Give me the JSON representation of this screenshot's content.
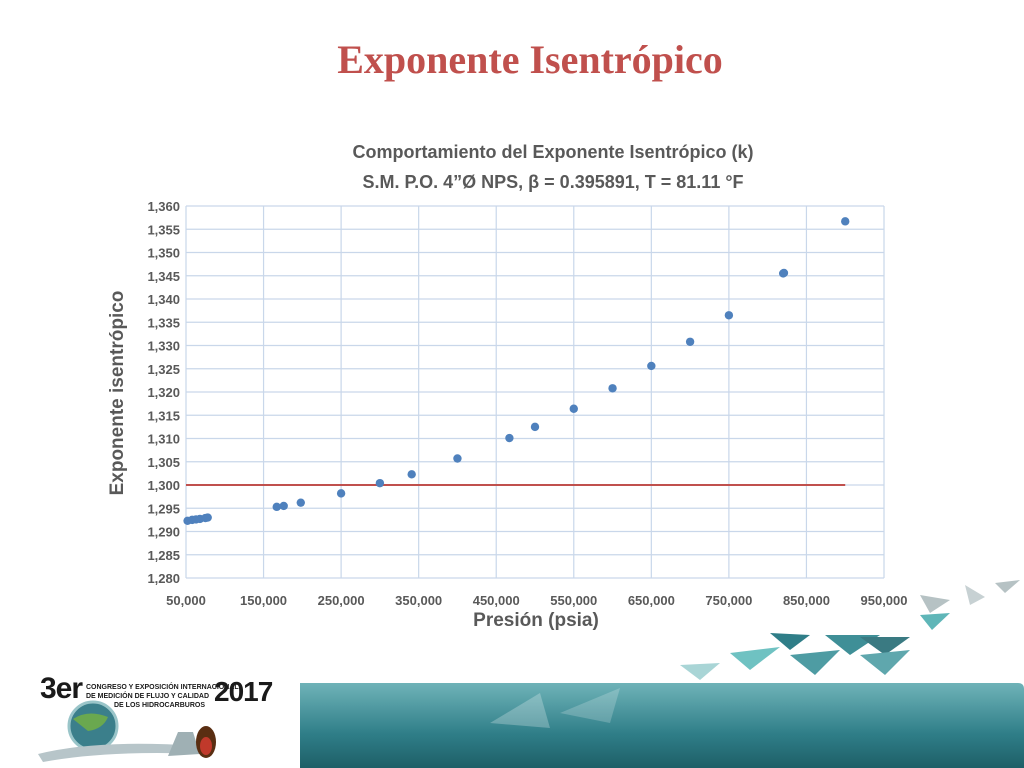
{
  "slide": {
    "title": "Exponente Isentrópico"
  },
  "colors": {
    "title": "#c0504d",
    "points": "#4f81bd",
    "reference_line": "#c0504d",
    "grid": "#c9d7ea",
    "footer_teal": "#3f8f97"
  },
  "chart_data": {
    "type": "scatter",
    "title_line1": "Comportamiento del Exponente Isentrópico (k)",
    "title_line2": "S.M. P.O. 4”Ø NPS, β = 0.395891, T = 81.11 °F",
    "xlabel": "Presión (psia)",
    "ylabel": "Exponente isentrópico",
    "xlim": [
      50000,
      950000
    ],
    "ylim": [
      1.28,
      1.36
    ],
    "xticks": [
      "50,000",
      "150,000",
      "250,000",
      "350,000",
      "450,000",
      "550,000",
      "650,000",
      "750,000",
      "850,000",
      "950,000"
    ],
    "yticks": [
      "1,360",
      "1,355",
      "1,350",
      "1,345",
      "1,340",
      "1,335",
      "1,330",
      "1,325",
      "1,320",
      "1,315",
      "1,310",
      "1,305",
      "1,300",
      "1,295",
      "1,290",
      "1,285",
      "1,280"
    ],
    "grid": true,
    "points": [
      {
        "x": 52000,
        "y": 1.2923
      },
      {
        "x": 58000,
        "y": 1.2925
      },
      {
        "x": 63000,
        "y": 1.2926
      },
      {
        "x": 68000,
        "y": 1.2927
      },
      {
        "x": 75000,
        "y": 1.2929
      },
      {
        "x": 78000,
        "y": 1.293
      },
      {
        "x": 167000,
        "y": 1.2953
      },
      {
        "x": 176000,
        "y": 1.2955
      },
      {
        "x": 198000,
        "y": 1.2962
      },
      {
        "x": 250000,
        "y": 1.2982
      },
      {
        "x": 300000,
        "y": 1.3004
      },
      {
        "x": 341000,
        "y": 1.3023
      },
      {
        "x": 400000,
        "y": 1.3057
      },
      {
        "x": 467000,
        "y": 1.3101
      },
      {
        "x": 500000,
        "y": 1.3125
      },
      {
        "x": 550000,
        "y": 1.3164
      },
      {
        "x": 600000,
        "y": 1.3208
      },
      {
        "x": 650000,
        "y": 1.3256
      },
      {
        "x": 700000,
        "y": 1.3308
      },
      {
        "x": 750000,
        "y": 1.3365
      },
      {
        "x": 820000,
        "y": 1.3455
      },
      {
        "x": 821000,
        "y": 1.3456
      },
      {
        "x": 900000,
        "y": 1.3567
      }
    ],
    "reference_line": {
      "x": [
        50000,
        900000
      ],
      "y": 1.3
    }
  },
  "logo": {
    "prefix": "3er",
    "line1": "CONGRESO Y EXPOSICIÓN INTERNACIONAL",
    "line2": "DE MEDICIÓN DE FLUJO Y CALIDAD",
    "line3": "DE LOS HIDROCARBUROS",
    "year": "2017"
  }
}
